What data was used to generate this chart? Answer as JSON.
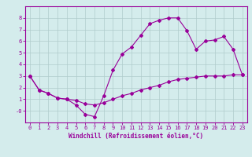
{
  "xlabel": "Windchill (Refroidissement éolien,°C)",
  "x_hours": [
    0,
    1,
    2,
    3,
    4,
    5,
    6,
    7,
    8,
    9,
    10,
    11,
    12,
    13,
    14,
    15,
    16,
    17,
    18,
    19,
    20,
    21,
    22,
    23
  ],
  "y_upper": [
    3.0,
    1.8,
    1.5,
    1.1,
    1.0,
    0.5,
    -0.3,
    -0.5,
    1.3,
    3.5,
    4.9,
    5.5,
    6.5,
    7.5,
    7.8,
    8.0,
    8.0,
    6.9,
    5.3,
    6.0,
    6.1,
    6.4,
    5.3,
    3.1
  ],
  "y_lower": [
    3.0,
    1.8,
    1.5,
    1.1,
    1.0,
    0.9,
    0.6,
    0.5,
    0.7,
    1.0,
    1.3,
    1.5,
    1.8,
    2.0,
    2.2,
    2.5,
    2.7,
    2.8,
    2.9,
    3.0,
    3.0,
    3.0,
    3.1,
    3.1
  ],
  "line_color": "#990099",
  "marker": "D",
  "marker_size": 2,
  "bg_color": "#d4ecec",
  "grid_color": "#b0cccc",
  "ylim": [
    -1,
    9
  ],
  "xlim": [
    -0.5,
    23.5
  ],
  "ytick_labels": [
    "-0",
    "1",
    "2",
    "3",
    "4",
    "5",
    "6",
    "7",
    "8"
  ],
  "ytick_vals": [
    0,
    1,
    2,
    3,
    4,
    5,
    6,
    7,
    8
  ],
  "xticks": [
    0,
    1,
    2,
    3,
    4,
    5,
    6,
    7,
    8,
    9,
    10,
    11,
    12,
    13,
    14,
    15,
    16,
    17,
    18,
    19,
    20,
    21,
    22,
    23
  ],
  "axis_color": "#990099",
  "tick_color": "#990099",
  "label_color": "#990099",
  "tick_fontsize": 5,
  "xlabel_fontsize": 5.5
}
